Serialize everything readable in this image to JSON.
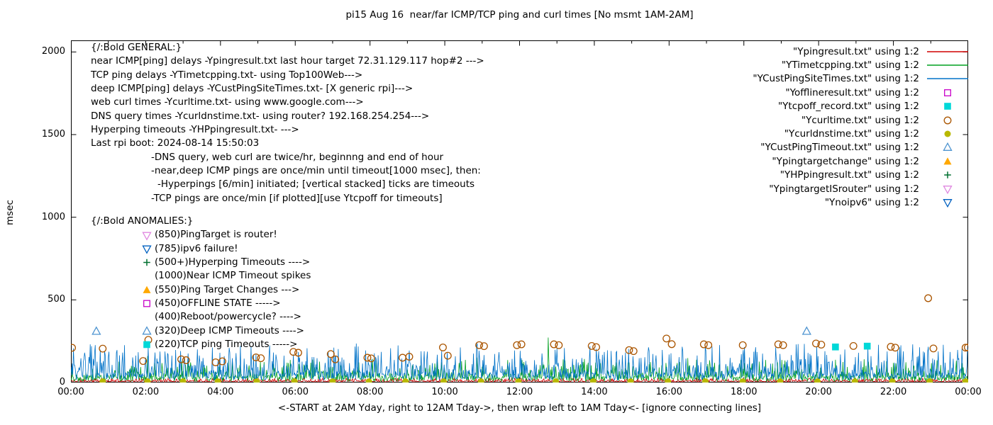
{
  "chart_data": {
    "type": "line+scatter",
    "title": "pi15 Aug 16  near/far ICMP/TCP ping and curl times [No msmt 1AM-2AM]",
    "xlabel": "<-START at 2AM Yday, right to 12AM Tday->, then wrap left to 1AM Tday<- [ignore connecting lines]",
    "ylabel": "msec",
    "xmax": 24,
    "ymax": 2070,
    "ylim": [
      0,
      2000
    ],
    "grid": false,
    "legend_position": "top-right",
    "y_ticks": [
      {
        "label": "0",
        "v": 0
      },
      {
        "label": "500",
        "v": 500
      },
      {
        "label": "1000",
        "v": 1000
      },
      {
        "label": "1500",
        "v": 1500
      },
      {
        "label": "2000",
        "v": 2000
      }
    ],
    "x_ticks": [
      {
        "label": "00:00",
        "h": 0
      },
      {
        "label": "02:00",
        "h": 2
      },
      {
        "label": "04:00",
        "h": 4
      },
      {
        "label": "06:00",
        "h": 6
      },
      {
        "label": "08:00",
        "h": 8
      },
      {
        "label": "10:00",
        "h": 10
      },
      {
        "label": "12:00",
        "h": 12
      },
      {
        "label": "14:00",
        "h": 14
      },
      {
        "label": "16:00",
        "h": 16
      },
      {
        "label": "18:00",
        "h": 18
      },
      {
        "label": "20:00",
        "h": 20
      },
      {
        "label": "22:00",
        "h": 22
      },
      {
        "label": "00:00",
        "h": 24
      }
    ],
    "line_series": [
      {
        "name": "Ypingresult.txt",
        "color": "#d00000",
        "seed": 11,
        "base": 3,
        "amp": 26,
        "exp": 3,
        "spikes": [],
        "description": "near ICMP ping delays, once/min, ~0-30 msec across full 24h"
      },
      {
        "name": "YTimetcpping.txt",
        "color": "#00a020",
        "seed": 22,
        "base": 6,
        "amp": 150,
        "exp": 5,
        "spikes": [
          [
            2.05,
            160
          ],
          [
            12.77,
            272
          ],
          [
            16.5,
            148
          ]
        ],
        "description": "TCP ping delays, noisy 0-150 msec, tallest spike ~272 msec near 12:46"
      },
      {
        "name": "YCustPingSiteTimes.txt",
        "color": "#0072c8",
        "seed": 33,
        "base": 12,
        "amp": 230,
        "exp": 4,
        "spikes": [
          [
            0.9,
            190
          ],
          [
            5.3,
            178
          ],
          [
            9.8,
            168
          ],
          [
            14.6,
            188
          ],
          [
            18.3,
            178
          ],
          [
            21.6,
            228
          ],
          [
            23.2,
            188
          ]
        ],
        "description": "deep ICMP ping delays, dense noise band ~0-230 msec"
      }
    ],
    "scatter_series": [
      {
        "name": "Yofflineresult.txt",
        "marker": "square-open",
        "color": "#c800c8",
        "points": []
      },
      {
        "name": "Ytcpoff_record.txt",
        "marker": "square-filled",
        "color": "#00d8d8",
        "points": [
          [
            20.45,
            215
          ],
          [
            21.3,
            220
          ]
        ]
      },
      {
        "name": "Ycurltime.txt",
        "marker": "circle-open",
        "color": "#aa5500",
        "points": [
          [
            0.03,
            210
          ],
          [
            0.85,
            205
          ],
          [
            1.93,
            130
          ],
          [
            2.07,
            258
          ],
          [
            2.95,
            140
          ],
          [
            3.08,
            135
          ],
          [
            3.87,
            122
          ],
          [
            4.05,
            128
          ],
          [
            4.95,
            152
          ],
          [
            5.08,
            147
          ],
          [
            5.95,
            185
          ],
          [
            6.08,
            180
          ],
          [
            6.95,
            172
          ],
          [
            7.07,
            140
          ],
          [
            7.93,
            150
          ],
          [
            8.03,
            146
          ],
          [
            8.87,
            150
          ],
          [
            9.05,
            156
          ],
          [
            9.95,
            212
          ],
          [
            10.08,
            162
          ],
          [
            10.92,
            226
          ],
          [
            11.05,
            220
          ],
          [
            11.93,
            226
          ],
          [
            12.05,
            231
          ],
          [
            12.92,
            231
          ],
          [
            13.05,
            226
          ],
          [
            13.93,
            221
          ],
          [
            14.05,
            214
          ],
          [
            14.93,
            196
          ],
          [
            15.05,
            190
          ],
          [
            15.93,
            266
          ],
          [
            16.07,
            232
          ],
          [
            16.93,
            231
          ],
          [
            17.05,
            226
          ],
          [
            17.97,
            226
          ],
          [
            18.92,
            231
          ],
          [
            19.05,
            226
          ],
          [
            19.93,
            236
          ],
          [
            20.07,
            229
          ],
          [
            20.93,
            221
          ],
          [
            21.93,
            216
          ],
          [
            22.05,
            211
          ],
          [
            22.93,
            510
          ],
          [
            23.07,
            206
          ],
          [
            23.93,
            211
          ],
          [
            23.99,
            212
          ]
        ]
      },
      {
        "name": "Ycurldnstime.txt",
        "marker": "circle-filled",
        "color": "#b8b800",
        "points": [
          [
            0.85,
            6
          ],
          [
            2.05,
            6
          ],
          [
            3.0,
            6
          ],
          [
            3.93,
            6
          ],
          [
            4.97,
            6
          ],
          [
            5.98,
            6
          ],
          [
            7.0,
            6
          ],
          [
            7.97,
            6
          ],
          [
            8.95,
            6
          ],
          [
            9.97,
            6
          ],
          [
            10.97,
            6
          ],
          [
            11.97,
            6
          ],
          [
            12.97,
            6
          ],
          [
            13.97,
            6
          ],
          [
            14.97,
            6
          ],
          [
            15.97,
            6
          ],
          [
            16.97,
            6
          ],
          [
            17.97,
            6
          ],
          [
            18.97,
            6
          ],
          [
            19.97,
            6
          ],
          [
            20.97,
            6
          ],
          [
            21.97,
            6
          ],
          [
            22.97,
            6
          ],
          [
            23.93,
            6
          ]
        ]
      },
      {
        "name": "YCustPingTimeout.txt",
        "marker": "triangle-open",
        "color": "#4e94d0",
        "points": [
          [
            0.68,
            310
          ],
          [
            19.68,
            310
          ]
        ]
      },
      {
        "name": "Ypingtargetchange",
        "marker": "triangle-filled",
        "color": "#ffa800",
        "points": []
      },
      {
        "name": "YHPpingresult.txt",
        "marker": "plus",
        "color": "#007030",
        "points": []
      },
      {
        "name": "YpingtargetISrouter",
        "marker": "triangle-down-open",
        "color": "#e088e0",
        "points": []
      },
      {
        "name": "Ynoipv6",
        "marker": "triangle-down-open",
        "color": "#0060c0",
        "points": []
      }
    ]
  },
  "legend": [
    {
      "label": "\"Ypingresult.txt\" using 1:2",
      "sample": "line",
      "color": "#d00000"
    },
    {
      "label": "\"YTimetcpping.txt\" using 1:2",
      "sample": "line",
      "color": "#00a020"
    },
    {
      "label": "\"YCustPingSiteTimes.txt\" using 1:2",
      "sample": "line",
      "color": "#0072c8"
    },
    {
      "label": "\"Yofflineresult.txt\" using 1:2",
      "sample": "square-open",
      "color": "#c800c8"
    },
    {
      "label": "\"Ytcpoff_record.txt\" using 1:2",
      "sample": "square-filled",
      "color": "#00d8d8"
    },
    {
      "label": "\"Ycurltime.txt\" using 1:2",
      "sample": "circle-open",
      "color": "#aa5500"
    },
    {
      "label": "\"Ycurldnstime.txt\" using 1:2",
      "sample": "circle-filled",
      "color": "#b8b800"
    },
    {
      "label": "\"YCustPingTimeout.txt\" using 1:2",
      "sample": "triangle-open",
      "color": "#4e94d0"
    },
    {
      "label": "\"Ypingtargetchange\" using 1:2",
      "sample": "triangle-filled",
      "color": "#ffa800"
    },
    {
      "label": "\"YHPpingresult.txt\" using 1:2",
      "sample": "plus",
      "color": "#007030"
    },
    {
      "label": "\"YpingtargetISrouter\" using 1:2",
      "sample": "triangle-down-open",
      "color": "#e088e0"
    },
    {
      "label": "\"Ynoipv6\" using 1:2",
      "sample": "triangle-down-open",
      "color": "#0060c0"
    }
  ],
  "general": {
    "heading": "{/:Bold GENERAL:}",
    "lines": [
      {
        "indent": 0,
        "text": "near ICMP[ping] delays -Ypingresult.txt last hour target 72.31.129.117 hop#2 --->"
      },
      {
        "indent": 0,
        "text": "TCP ping delays -YTimetcpping.txt- using Top100Web--->"
      },
      {
        "indent": 0,
        "text": "deep ICMP[ping] delays -YCustPingSiteTimes.txt- [X generic rpi]--->"
      },
      {
        "indent": 0,
        "text": "web curl times -Ycurltime.txt- using www.google.com--->"
      },
      {
        "indent": 0,
        "text": "DNS query times -Ycurldnstime.txt- using router? 192.168.254.254--->"
      },
      {
        "indent": 0,
        "text": "Hyperping timeouts -YHPpingresult.txt- --->"
      },
      {
        "indent": 0,
        "text": "Last rpi boot: 2024-08-14 15:50:03"
      },
      {
        "indent": 85,
        "text": "-DNS query, web curl are twice/hr, beginnng and end of hour"
      },
      {
        "indent": 85,
        "text": "-near,deep ICMP pings are once/min until timeout[1000 msec], then:"
      },
      {
        "indent": 94,
        "text": "-Hyperpings [6/min] initiated; [vertical stacked] ticks are timeouts"
      },
      {
        "indent": 85,
        "text": "-TCP pings are once/min [if plotted][use Ytcpoff for timeouts]"
      }
    ]
  },
  "anomalies": {
    "heading": "{/:Bold ANOMALIES:}",
    "items": [
      {
        "marker": "triangle-down-open",
        "color": "#e088e0",
        "text": "(850)PingTarget is router!"
      },
      {
        "marker": "triangle-down-open",
        "color": "#0060c0",
        "text": "(785)ipv6 failure!"
      },
      {
        "marker": "plus",
        "color": "#007030",
        "text": "(500+)Hyperping Timeouts ---->"
      },
      {
        "marker": "none",
        "color": "",
        "text": "(1000)Near ICMP Timeout spikes"
      },
      {
        "marker": "triangle-filled",
        "color": "#ffa800",
        "text": "(550)Ping Target Changes --->"
      },
      {
        "marker": "square-open",
        "color": "#c800c8",
        "text": "(450)OFFLINE STATE ----->"
      },
      {
        "marker": "none",
        "color": "",
        "text": "(400)Reboot/powercycle? ---->"
      },
      {
        "marker": "triangle-open",
        "color": "#4e94d0",
        "text": "(320)Deep ICMP Timeouts ---->"
      },
      {
        "marker": "square-filled",
        "color": "#00d8d8",
        "text": "(220)TCP ping Timeouts ----->"
      }
    ]
  }
}
